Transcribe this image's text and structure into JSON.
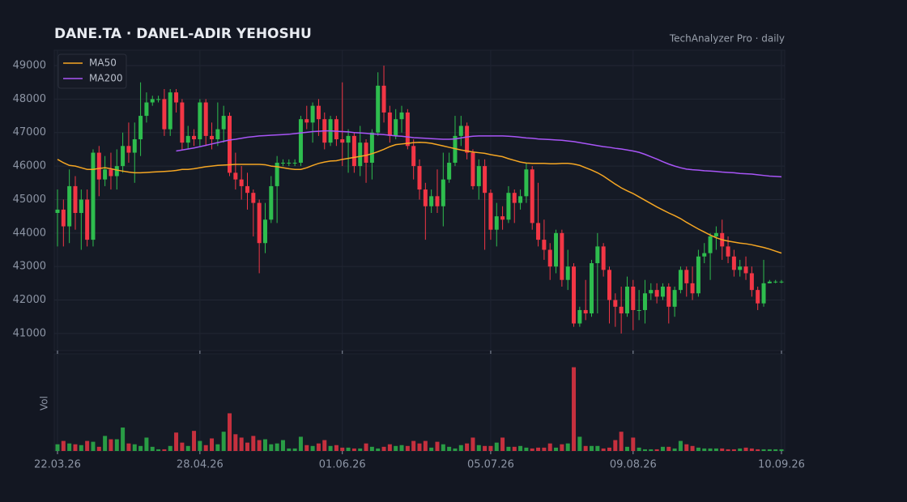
{
  "chart_data": {
    "type": "candlestick",
    "title": "DANE.TA  ·  DANEL-ADIR YEHOSHU",
    "subtitle": "TechAnalyzer Pro · daily",
    "categories": [
      "22.03.26",
      null,
      null,
      null,
      null,
      null,
      null,
      null,
      null,
      null,
      null,
      null,
      null,
      null,
      null,
      null,
      null,
      null,
      null,
      null,
      null,
      null,
      null,
      null,
      "28.04.26",
      null,
      null,
      null,
      null,
      null,
      null,
      null,
      null,
      null,
      null,
      null,
      null,
      null,
      null,
      null,
      null,
      null,
      null,
      null,
      null,
      null,
      null,
      null,
      "01.06.26",
      null,
      null,
      null,
      null,
      null,
      null,
      null,
      null,
      null,
      null,
      null,
      null,
      null,
      null,
      null,
      null,
      null,
      null,
      null,
      null,
      null,
      null,
      null,
      null,
      "05.07.26",
      null,
      null,
      null,
      null,
      null,
      null,
      null,
      null,
      null,
      null,
      null,
      null,
      null,
      null,
      null,
      null,
      null,
      null,
      null,
      null,
      null,
      null,
      null,
      "09.08.26",
      null,
      null,
      null,
      null,
      null,
      null,
      null,
      null,
      null,
      null,
      null,
      null,
      null,
      null,
      null,
      null,
      null,
      null,
      null,
      null,
      null,
      null,
      null,
      null,
      "10.09.26"
    ],
    "open": [
      44600,
      44700,
      44200,
      45400,
      44600,
      45000,
      43800,
      46400,
      45600,
      45900,
      45700,
      46000,
      46600,
      46400,
      46800,
      47500,
      47900,
      48000,
      48000,
      47100,
      48200,
      47900,
      46700,
      46900,
      46800,
      47900,
      46900,
      46800,
      47100,
      47500,
      45800,
      45600,
      45400,
      45200,
      44900,
      43700,
      44400,
      45400,
      46100,
      46100,
      46100,
      46100,
      47400,
      47300,
      47800,
      47400,
      46700,
      47400,
      46800,
      46700,
      46900,
      46000,
      46700,
      46100,
      47000,
      48400,
      47600,
      46900,
      47400,
      47600,
      46600,
      46000,
      45300,
      44800,
      45100,
      44800,
      45600,
      46100,
      46900,
      47200,
      46400,
      45400,
      46000,
      45200,
      44100,
      44500,
      44400,
      45200,
      44900,
      45100,
      45900,
      44300,
      43800,
      43500,
      43000,
      44000,
      42600,
      43000,
      41300,
      41700,
      41600,
      43100,
      43600,
      42900,
      42000,
      41800,
      41600,
      42400,
      41700,
      41700,
      42200,
      42300,
      42100,
      42400,
      41800,
      42300,
      42900,
      42500,
      42200,
      43300,
      43400,
      43900,
      44000,
      43600,
      43300,
      42900,
      43000,
      42800,
      42300,
      41900,
      42500,
      42550,
      42550
    ],
    "high": [
      45300,
      45000,
      45900,
      45700,
      45300,
      45300,
      46500,
      46600,
      46300,
      46400,
      46500,
      47000,
      47300,
      47300,
      48500,
      48200,
      48100,
      48100,
      48300,
      48300,
      48300,
      48000,
      47200,
      47100,
      48000,
      48000,
      47300,
      47900,
      47800,
      47600,
      46400,
      46000,
      45800,
      45300,
      45000,
      44900,
      45700,
      46300,
      46200,
      46200,
      46200,
      47500,
      47800,
      47900,
      48000,
      47600,
      47500,
      47500,
      48500,
      47100,
      47000,
      47200,
      46800,
      47100,
      48800,
      49000,
      47800,
      47700,
      47800,
      47700,
      46800,
      46200,
      45500,
      45300,
      45900,
      46400,
      46400,
      47500,
      47500,
      47300,
      46500,
      46200,
      46200,
      45300,
      44900,
      44800,
      45400,
      45300,
      45300,
      46100,
      46000,
      45500,
      44400,
      43700,
      44100,
      44100,
      43500,
      43100,
      41800,
      42600,
      43200,
      44000,
      43700,
      43000,
      42200,
      42400,
      42700,
      42600,
      42300,
      42600,
      42500,
      42500,
      42500,
      42500,
      42400,
      43000,
      43000,
      43000,
      43500,
      43700,
      44000,
      44200,
      44400,
      43900,
      43500,
      43200,
      43300,
      43000,
      42400,
      43200,
      42600,
      42600,
      42600
    ],
    "low": [
      43600,
      43600,
      43700,
      44100,
      43500,
      43600,
      43600,
      45100,
      45400,
      45300,
      45300,
      45800,
      46100,
      45500,
      46300,
      47300,
      47800,
      47900,
      46900,
      46900,
      47600,
      46500,
      46500,
      46600,
      46600,
      46600,
      46500,
      46600,
      46700,
      45700,
      45300,
      45000,
      44700,
      43900,
      42800,
      43400,
      44300,
      44300,
      46000,
      46000,
      46000,
      46000,
      47100,
      46700,
      46900,
      46500,
      46600,
      46600,
      46000,
      45800,
      45800,
      45700,
      45500,
      45600,
      46900,
      47300,
      46700,
      46800,
      47000,
      46500,
      45600,
      45000,
      43800,
      44600,
      44600,
      44200,
      45500,
      46000,
      46600,
      46200,
      45300,
      45000,
      43500,
      43800,
      43600,
      44100,
      44300,
      44300,
      44700,
      44900,
      44100,
      43600,
      43200,
      42600,
      42800,
      42400,
      42300,
      41200,
      41200,
      41400,
      41500,
      41600,
      42700,
      41300,
      41200,
      41000,
      41500,
      41100,
      41400,
      41300,
      42000,
      41900,
      42000,
      41300,
      41500,
      42200,
      42100,
      42000,
      42100,
      43100,
      42600,
      43500,
      43200,
      43100,
      42700,
      42700,
      42600,
      42100,
      41700,
      41800,
      42500,
      42500,
      42500
    ],
    "close": [
      44700,
      44200,
      45400,
      44600,
      45000,
      43800,
      46400,
      45600,
      45900,
      45700,
      46000,
      46600,
      46400,
      46800,
      47500,
      47900,
      48000,
      48000,
      47100,
      48200,
      47900,
      46700,
      46900,
      46800,
      47900,
      46900,
      46800,
      47100,
      47500,
      45800,
      45600,
      45400,
      45200,
      44900,
      43700,
      44400,
      45400,
      46100,
      46100,
      46100,
      46100,
      47400,
      47300,
      47800,
      47400,
      46700,
      47400,
      46800,
      46700,
      46900,
      46000,
      46700,
      46100,
      47000,
      48400,
      47600,
      46900,
      47400,
      47600,
      46600,
      46000,
      45300,
      44800,
      45100,
      44800,
      45600,
      46100,
      46900,
      47200,
      46400,
      45400,
      46000,
      45200,
      44100,
      44500,
      44400,
      45200,
      44900,
      45100,
      45900,
      44300,
      43800,
      43500,
      43000,
      44000,
      42600,
      43000,
      41300,
      41700,
      41600,
      43100,
      43600,
      42900,
      42000,
      41800,
      41600,
      42400,
      41700,
      41700,
      42200,
      42300,
      42100,
      42400,
      41800,
      42300,
      42900,
      42500,
      42200,
      43300,
      43400,
      43900,
      44000,
      43600,
      43300,
      42900,
      43000,
      42800,
      42300,
      41900,
      42500,
      42550,
      42550,
      42550
    ],
    "up_color": "#2ebd4e",
    "down_color": "#f23645",
    "volume": {
      "label": "Vol",
      "ylim": [
        0,
        116
      ],
      "values": [
        8,
        12,
        9,
        8,
        7,
        12,
        11,
        5,
        18,
        14,
        14,
        28,
        9,
        8,
        6,
        16,
        5,
        2,
        2,
        6,
        22,
        10,
        6,
        24,
        12,
        7,
        15,
        8,
        23,
        45,
        20,
        16,
        10,
        18,
        13,
        14,
        8,
        9,
        13,
        3,
        3,
        17,
        7,
        6,
        9,
        13,
        6,
        7,
        4,
        4,
        3,
        3,
        9,
        5,
        3,
        5,
        8,
        6,
        7,
        6,
        12,
        9,
        12,
        4,
        11,
        8,
        5,
        3,
        7,
        9,
        16,
        7,
        6,
        6,
        10,
        16,
        5,
        5,
        6,
        4,
        3,
        4,
        4,
        9,
        4,
        8,
        9,
        100,
        17,
        6,
        6,
        6,
        3,
        4,
        13,
        23,
        5,
        16,
        4,
        2,
        2,
        2,
        5,
        5,
        3,
        12,
        8,
        6,
        4,
        3,
        3,
        3,
        3,
        2,
        2,
        3,
        4,
        3,
        2,
        2,
        2,
        2,
        2
      ]
    },
    "series": [
      {
        "name": "MA50",
        "color": "#f5a623",
        "values": [
          46200,
          46100,
          46020,
          46000,
          45950,
          45900,
          45900,
          45930,
          45950,
          45920,
          45880,
          45850,
          45820,
          45800,
          45800,
          45810,
          45820,
          45830,
          45840,
          45850,
          45870,
          45900,
          45900,
          45920,
          45950,
          45980,
          46000,
          46020,
          46030,
          46040,
          46050,
          46050,
          46050,
          46050,
          46050,
          46040,
          46000,
          45980,
          45950,
          45920,
          45900,
          45900,
          45950,
          46020,
          46080,
          46120,
          46150,
          46160,
          46200,
          46230,
          46260,
          46290,
          46320,
          46370,
          46430,
          46500,
          46580,
          46640,
          46660,
          46680,
          46700,
          46710,
          46700,
          46680,
          46640,
          46600,
          46560,
          46520,
          46480,
          46450,
          46420,
          46400,
          46380,
          46340,
          46310,
          46280,
          46220,
          46170,
          46120,
          46090,
          46080,
          46080,
          46080,
          46070,
          46070,
          46080,
          46080,
          46060,
          46020,
          45950,
          45880,
          45800,
          45700,
          45580,
          45460,
          45350,
          45260,
          45180,
          45080,
          44980,
          44880,
          44780,
          44690,
          44600,
          44520,
          44430,
          44320,
          44220,
          44120,
          44030,
          43940,
          43860,
          43800,
          43760,
          43730,
          43700,
          43680,
          43650,
          43610,
          43570,
          43520,
          43460,
          43400
        ]
      },
      {
        "name": "MA200",
        "color": "#a855f7",
        "values": [
          null,
          null,
          null,
          null,
          null,
          null,
          null,
          null,
          null,
          null,
          null,
          null,
          null,
          null,
          null,
          null,
          null,
          null,
          null,
          null,
          46450,
          46480,
          46510,
          46540,
          46580,
          46620,
          46660,
          46700,
          46740,
          46780,
          46800,
          46830,
          46860,
          46880,
          46900,
          46910,
          46920,
          46930,
          46940,
          46950,
          46970,
          46990,
          47010,
          47030,
          47040,
          47050,
          47050,
          47040,
          47030,
          47020,
          47000,
          46990,
          46980,
          46960,
          46950,
          46940,
          46920,
          46900,
          46890,
          46870,
          46850,
          46840,
          46830,
          46820,
          46810,
          46800,
          46800,
          46810,
          46840,
          46870,
          46890,
          46900,
          46900,
          46900,
          46900,
          46900,
          46890,
          46880,
          46860,
          46840,
          46830,
          46810,
          46800,
          46790,
          46780,
          46770,
          46750,
          46730,
          46700,
          46670,
          46640,
          46610,
          46580,
          46560,
          46530,
          46510,
          46480,
          46450,
          46410,
          46350,
          46280,
          46210,
          46130,
          46060,
          46000,
          45950,
          45910,
          45890,
          45880,
          45860,
          45850,
          45840,
          45820,
          45810,
          45800,
          45780,
          45770,
          45760,
          45740,
          45720,
          45700,
          45690,
          45680
        ]
      }
    ],
    "ylim": [
      40490,
      49460
    ],
    "yticks": [
      41000,
      42000,
      43000,
      44000,
      45000,
      46000,
      47000,
      48000,
      49000
    ],
    "grid": true,
    "legend": "upper left"
  }
}
